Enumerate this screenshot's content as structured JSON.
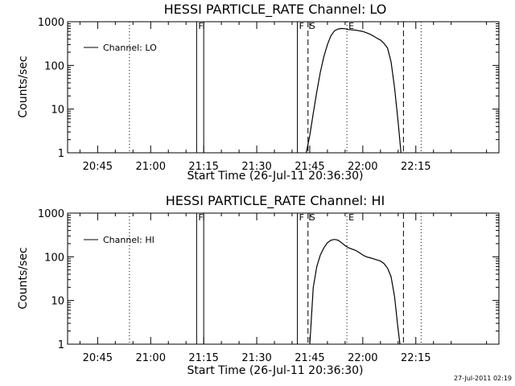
{
  "chart_data": [
    {
      "type": "line",
      "title": "HESSI PARTICLE_RATE Channel: LO",
      "xlabel": "Start Time (26-Jul-11 20:36:30)",
      "ylabel": "Counts/sec",
      "yscale": "log",
      "ylim": [
        1,
        1000
      ],
      "xlim_minutes": [
        36.5,
        158.5
      ],
      "xticks": [
        {
          "minutes": 45,
          "label": "20:45"
        },
        {
          "minutes": 60,
          "label": "21:00"
        },
        {
          "minutes": 75,
          "label": "21:15"
        },
        {
          "minutes": 90,
          "label": "21:30"
        },
        {
          "minutes": 105,
          "label": "21:45"
        },
        {
          "minutes": 120,
          "label": "22:00"
        },
        {
          "minutes": 135,
          "label": "22:15"
        }
      ],
      "yticks": [
        {
          "value": 1,
          "label": "1"
        },
        {
          "value": 10,
          "label": "10"
        },
        {
          "value": 100,
          "label": "100"
        },
        {
          "value": 1000,
          "label": "1000"
        }
      ],
      "legend": {
        "label": "Channel: LO",
        "placement": "top-left"
      },
      "markers": [
        {
          "minutes": 54,
          "style": "dotted",
          "label": ""
        },
        {
          "minutes": 73,
          "style": "solid",
          "label": "F"
        },
        {
          "minutes": 75,
          "style": "solid",
          "label": ""
        },
        {
          "minutes": 101.5,
          "style": "solid",
          "label": "F"
        },
        {
          "minutes": 104.5,
          "style": "dashed",
          "label": "S"
        },
        {
          "minutes": 115.5,
          "style": "dotted",
          "label": "E"
        },
        {
          "minutes": 131.5,
          "style": "dashed",
          "label": ""
        },
        {
          "minutes": 136.5,
          "style": "dotted",
          "label": ""
        }
      ],
      "series": [
        {
          "name": "Channel: LO",
          "points": [
            [
              104,
              1
            ],
            [
              105,
              2.5
            ],
            [
              106,
              8
            ],
            [
              107,
              25
            ],
            [
              108,
              70
            ],
            [
              109,
              160
            ],
            [
              110,
              300
            ],
            [
              111,
              480
            ],
            [
              112,
              620
            ],
            [
              113,
              680
            ],
            [
              114,
              700
            ],
            [
              115,
              690
            ],
            [
              116,
              660
            ],
            [
              117,
              650
            ],
            [
              118,
              640
            ],
            [
              119,
              620
            ],
            [
              120,
              600
            ],
            [
              121,
              560
            ],
            [
              122,
              520
            ],
            [
              123,
              470
            ],
            [
              124,
              420
            ],
            [
              125,
              380
            ],
            [
              126,
              320
            ],
            [
              127,
              250
            ],
            [
              128,
              120
            ],
            [
              129,
              30
            ],
            [
              130,
              5
            ],
            [
              130.8,
              1
            ]
          ]
        }
      ]
    },
    {
      "type": "line",
      "title": "HESSI PARTICLE_RATE Channel: HI",
      "xlabel": "Start Time (26-Jul-11 20:36:30)",
      "ylabel": "Counts/sec",
      "yscale": "log",
      "ylim": [
        1,
        1000
      ],
      "xlim_minutes": [
        36.5,
        158.5
      ],
      "xticks": [
        {
          "minutes": 45,
          "label": "20:45"
        },
        {
          "minutes": 60,
          "label": "21:00"
        },
        {
          "minutes": 75,
          "label": "21:15"
        },
        {
          "minutes": 90,
          "label": "21:30"
        },
        {
          "minutes": 105,
          "label": "21:45"
        },
        {
          "minutes": 120,
          "label": "22:00"
        },
        {
          "minutes": 135,
          "label": "22:15"
        }
      ],
      "yticks": [
        {
          "value": 1,
          "label": "1"
        },
        {
          "value": 10,
          "label": "10"
        },
        {
          "value": 100,
          "label": "100"
        },
        {
          "value": 1000,
          "label": "1000"
        }
      ],
      "legend": {
        "label": "Channel: HI",
        "placement": "top-left"
      },
      "markers": [
        {
          "minutes": 54,
          "style": "dotted",
          "label": ""
        },
        {
          "minutes": 73,
          "style": "solid",
          "label": "F"
        },
        {
          "minutes": 75,
          "style": "solid",
          "label": ""
        },
        {
          "minutes": 101.5,
          "style": "solid",
          "label": "F"
        },
        {
          "minutes": 104.5,
          "style": "dashed",
          "label": "S"
        },
        {
          "minutes": 115.5,
          "style": "dotted",
          "label": "E"
        },
        {
          "minutes": 131.5,
          "style": "dashed",
          "label": ""
        },
        {
          "minutes": 136.5,
          "style": "dotted",
          "label": ""
        }
      ],
      "series": [
        {
          "name": "Channel: HI",
          "points": [
            [
              105,
              1
            ],
            [
              106,
              20
            ],
            [
              107,
              60
            ],
            [
              108,
              110
            ],
            [
              109,
              160
            ],
            [
              110,
              210
            ],
            [
              111,
              240
            ],
            [
              112,
              250
            ],
            [
              113,
              240
            ],
            [
              114,
              210
            ],
            [
              115,
              180
            ],
            [
              116,
              160
            ],
            [
              117,
              150
            ],
            [
              118,
              140
            ],
            [
              119,
              125
            ],
            [
              120,
              110
            ],
            [
              121,
              100
            ],
            [
              122,
              95
            ],
            [
              123,
              90
            ],
            [
              124,
              85
            ],
            [
              125,
              80
            ],
            [
              126,
              70
            ],
            [
              127,
              55
            ],
            [
              128,
              35
            ],
            [
              129,
              12
            ],
            [
              129.8,
              3
            ],
            [
              130.5,
              1
            ]
          ]
        }
      ]
    }
  ],
  "footer": {
    "timestamp": "27-Jul-2011 02:19"
  }
}
